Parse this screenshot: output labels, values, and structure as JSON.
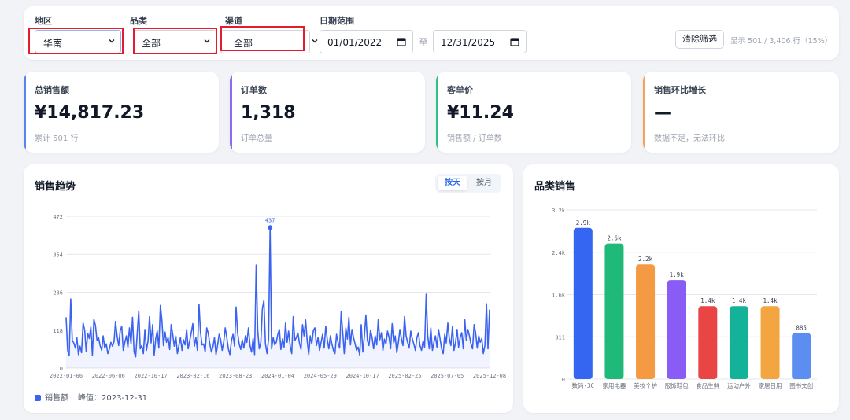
{
  "filters": {
    "region_label": "地区",
    "region_value": "华南",
    "category_label": "品类",
    "category_value": "全部",
    "channel_label": "渠道",
    "channel_value": "全部",
    "date_label": "日期范围",
    "date_start": "01/01/2022",
    "date_sep": "至",
    "date_end": "12/31/2025",
    "clear_label": "清除筛选",
    "row_count": "显示 501 / 3,406 行（15%）"
  },
  "kpis": [
    {
      "label": "总销售额",
      "value": "¥14,817.23",
      "sub": "累计 501 行",
      "color": "#5b82ee"
    },
    {
      "label": "订单数",
      "value": "1,318",
      "sub": "订单总量",
      "color": "#8b6cf0"
    },
    {
      "label": "客单价",
      "value": "¥11.24",
      "sub": "销售额 / 订单数",
      "color": "#2fbf8a"
    },
    {
      "label": "销售环比增长",
      "value": "—",
      "sub": "数据不足，无法环比",
      "color": "#f5a25a"
    }
  ],
  "trend": {
    "title": "销售趋势",
    "toggle_day": "按天",
    "toggle_month": "按月",
    "legend_label": "销售额",
    "peak_label": "峰值：2023-12-31"
  },
  "category": {
    "title": "品类销售"
  },
  "chart_data": [
    {
      "type": "line",
      "title": "销售趋势",
      "series": [
        {
          "name": "销售额",
          "values": [
            158,
            55,
            40,
            215,
            85,
            78,
            62,
            95,
            42,
            68,
            48,
            140,
            118,
            52,
            108,
            92,
            128,
            40,
            152,
            132,
            85,
            95,
            70,
            55,
            100,
            62,
            75,
            45,
            60,
            80,
            68,
            82,
            145,
            100,
            70,
            115,
            130,
            55,
            80,
            100,
            65,
            125,
            75,
            158,
            50,
            35,
            105,
            178,
            60,
            70,
            45,
            120,
            55,
            85,
            160,
            78,
            135,
            40,
            92,
            115,
            62,
            195,
            150,
            70,
            112,
            80,
            95,
            58,
            135,
            105,
            68,
            100,
            45,
            70,
            95,
            55,
            88,
            72,
            120,
            60,
            85,
            110,
            138,
            68,
            95,
            55,
            198,
            110,
            72,
            75,
            50,
            125,
            108,
            75,
            50,
            65,
            95,
            42,
            70,
            105,
            88,
            55,
            82,
            125,
            95,
            60,
            42,
            85,
            105,
            68,
            190,
            110,
            75,
            58,
            88,
            62,
            100,
            80,
            125,
            70,
            50,
            92,
            42,
            320,
            115,
            60,
            80,
            185,
            210,
            75,
            45,
            90,
            437,
            60,
            95,
            72,
            80,
            105,
            120,
            58,
            90,
            65,
            140,
            80,
            115,
            70,
            45,
            160,
            85,
            95,
            110,
            78,
            58,
            135,
            100,
            150,
            85,
            42,
            100,
            75,
            118,
            125,
            70,
            95,
            55,
            80,
            105,
            62,
            130,
            90,
            60,
            100,
            75,
            55,
            45,
            105,
            80,
            62,
            175,
            110,
            45,
            125,
            90,
            158,
            72,
            120,
            95,
            75,
            55,
            65,
            40,
            135,
            50,
            100,
            165,
            85,
            70,
            118,
            95,
            60,
            100,
            72,
            150,
            88,
            110,
            55,
            90,
            75,
            115,
            95,
            60,
            138,
            78,
            100,
            48,
            80,
            120,
            90,
            70,
            160,
            100,
            80,
            62,
            115,
            92,
            75,
            55,
            95,
            110,
            70,
            55,
            85,
            65,
            230,
            100,
            60,
            125,
            55,
            80,
            100,
            65,
            120,
            90,
            60,
            45,
            105,
            78,
            140,
            92,
            70,
            130,
            55,
            80,
            120,
            65,
            95,
            110,
            60,
            150,
            85,
            120,
            100,
            75,
            60,
            135,
            110,
            62,
            100,
            80,
            92,
            45,
            70,
            200,
            60,
            182
          ]
        }
      ],
      "x_tick_labels": [
        "2022-01-06",
        "2022-06-06",
        "2022-10-17",
        "2023-02-16",
        "2023-08-23",
        "2024-01-04",
        "2024-05-29",
        "2024-10-17",
        "2025-02-25",
        "2025-07-05",
        "2025-12-08"
      ],
      "y_tick_labels": [
        "0",
        "118",
        "236",
        "354",
        "472"
      ],
      "ylim": [
        0,
        472
      ],
      "annotations": [
        {
          "text": "437",
          "value": 437
        }
      ],
      "grid": true
    },
    {
      "type": "bar",
      "title": "品类销售",
      "categories": [
        "数码·3C",
        "家用电器",
        "美妆个护",
        "服饰鞋包",
        "食品生鲜",
        "运动户外",
        "家居日用",
        "图书文创"
      ],
      "values": [
        2900,
        2600,
        2200,
        1900,
        1400,
        1400,
        1400,
        885
      ],
      "data_labels": [
        "2.9k",
        "2.6k",
        "2.2k",
        "1.9k",
        "1.4k",
        "1.4k",
        "1.4k",
        "885"
      ],
      "colors": [
        "#3566f2",
        "#1fba7a",
        "#f39a43",
        "#8a5cf6",
        "#ea4545",
        "#15b29a",
        "#f2a540",
        "#5b8ef0"
      ],
      "y_tick_labels": [
        "0",
        "811",
        "1.6k",
        "2.4k",
        "3.2k"
      ],
      "ylim": [
        0,
        3244
      ],
      "grid": true
    }
  ]
}
